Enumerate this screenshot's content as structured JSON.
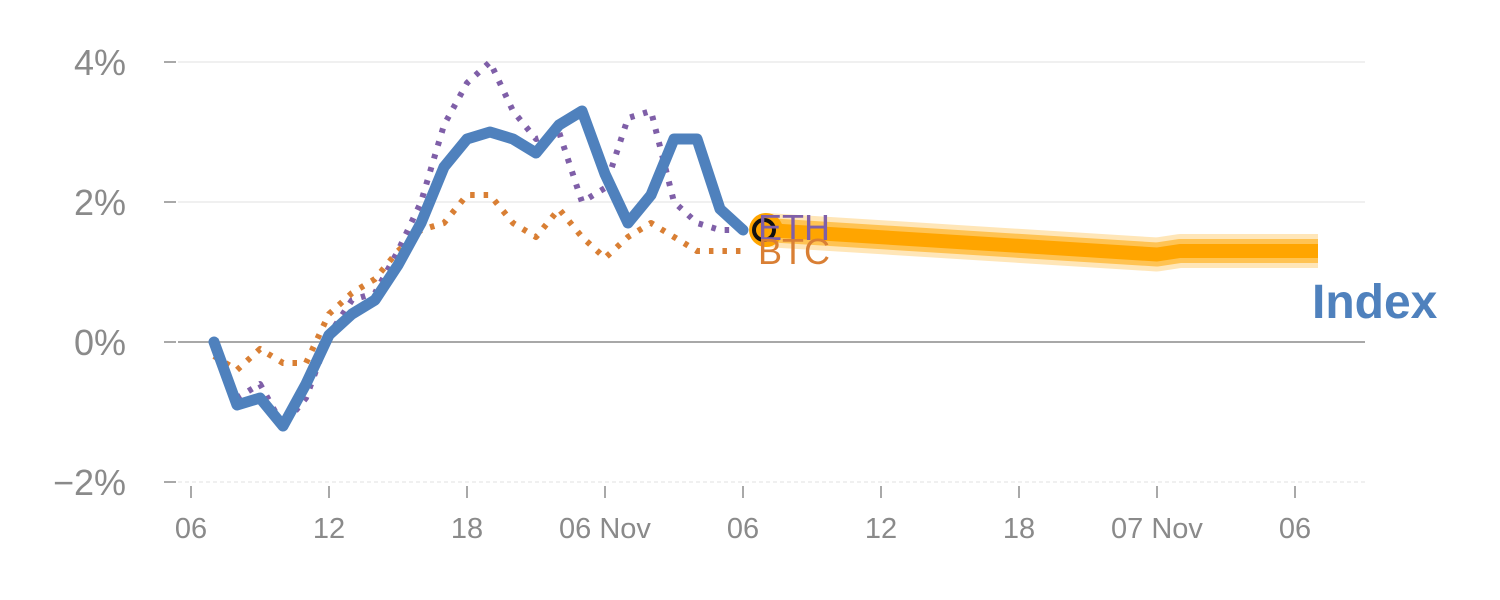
{
  "chart_data": {
    "type": "line",
    "title": "",
    "xlabel": "",
    "ylabel": "",
    "y_unit": "%",
    "ylim": [
      -2,
      4
    ],
    "yticks": [
      -2,
      0,
      2,
      4
    ],
    "ytick_labels": [
      "−2%",
      "0%",
      "2%",
      "4%"
    ],
    "x_tick_labels": [
      "06",
      "12",
      "18",
      "06 Nov",
      "06",
      "12",
      "18",
      "07 Nov",
      "06"
    ],
    "x_tick_hours": [
      0,
      6,
      12,
      18,
      24,
      30,
      36,
      42,
      48
    ],
    "xlim_hours": [
      0,
      51
    ],
    "grid": true,
    "series": [
      {
        "name": "ETH",
        "color": "#7f5fa8",
        "style": "dotted",
        "x_hours": [
          1,
          2,
          3,
          4,
          5,
          6,
          7,
          8,
          9,
          10,
          11,
          12,
          13,
          14,
          15,
          16,
          17,
          18,
          19,
          20,
          21,
          22,
          23,
          24
        ],
        "values": [
          -0.1,
          -0.8,
          -0.6,
          -1.2,
          -0.8,
          0.1,
          0.6,
          0.7,
          1.3,
          2.0,
          3.1,
          3.7,
          4.0,
          3.3,
          2.9,
          3.0,
          2.0,
          2.2,
          3.2,
          3.3,
          2.0,
          1.7,
          1.6,
          1.6
        ]
      },
      {
        "name": "BTC",
        "color": "#d97f34",
        "style": "dotted",
        "x_hours": [
          1,
          2,
          3,
          4,
          5,
          6,
          7,
          8,
          9,
          10,
          11,
          12,
          13,
          14,
          15,
          16,
          17,
          18,
          19,
          20,
          21,
          22,
          23,
          24
        ],
        "values": [
          -0.2,
          -0.4,
          -0.1,
          -0.3,
          -0.3,
          0.4,
          0.7,
          0.9,
          1.3,
          1.6,
          1.7,
          2.1,
          2.1,
          1.7,
          1.5,
          1.9,
          1.5,
          1.2,
          1.5,
          1.7,
          1.5,
          1.3,
          1.3,
          1.3
        ]
      },
      {
        "name": "Index",
        "color": "#4f81bd",
        "style": "solid",
        "x_hours": [
          1,
          2,
          3,
          4,
          5,
          6,
          7,
          8,
          9,
          10,
          11,
          12,
          13,
          14,
          15,
          16,
          17,
          18,
          19,
          20,
          21,
          22,
          23,
          24
        ],
        "values": [
          0.0,
          -0.9,
          -0.8,
          -1.2,
          -0.6,
          0.1,
          0.4,
          0.6,
          1.1,
          1.7,
          2.5,
          2.9,
          3.0,
          2.9,
          2.7,
          3.1,
          3.3,
          2.4,
          1.7,
          2.1,
          2.9,
          2.9,
          1.9,
          1.6
        ]
      }
    ],
    "forecast": {
      "color": "#ffa500",
      "x_hours": [
        25,
        42,
        43,
        49
      ],
      "values": [
        1.6,
        1.25,
        1.3,
        1.3
      ]
    }
  }
}
